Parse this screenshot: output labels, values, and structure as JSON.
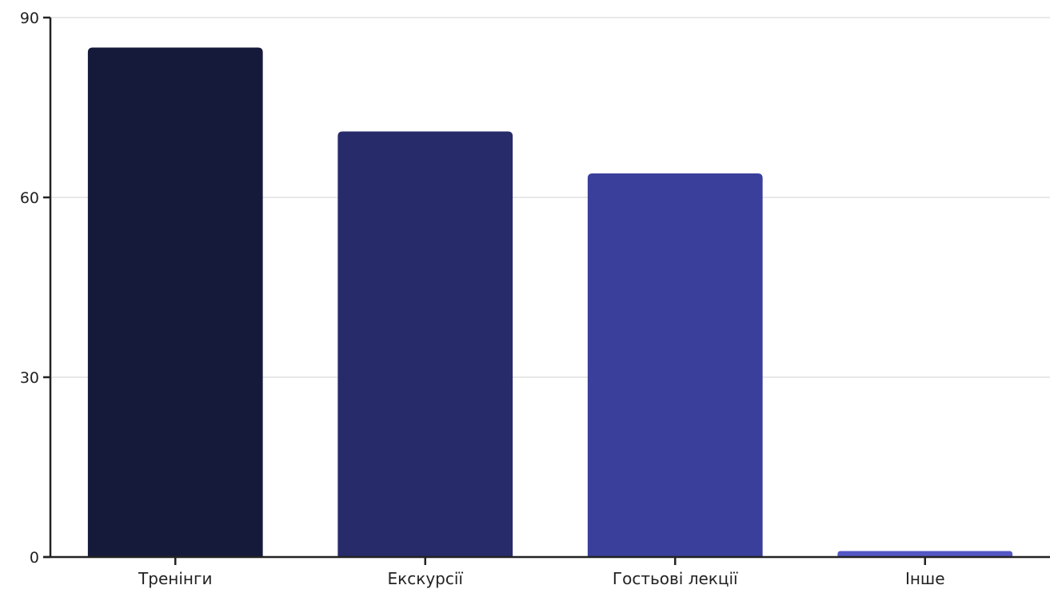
{
  "chart_data": {
    "type": "bar",
    "title": "",
    "xlabel": "",
    "ylabel": "",
    "categories": [
      "Тренінги",
      "Екскурсії",
      "Гостьові лекції",
      "Інше"
    ],
    "values": [
      85,
      71,
      64,
      1
    ],
    "ylim": [
      0,
      90
    ],
    "yticks": [
      0,
      30,
      60,
      90
    ],
    "grid": true,
    "legend": "none",
    "colors": [
      "#161a3a",
      "#272b6a",
      "#3a3f9b",
      "#5458c4"
    ],
    "axis_color": "#222222",
    "grid_color": "#d9d9d9"
  }
}
